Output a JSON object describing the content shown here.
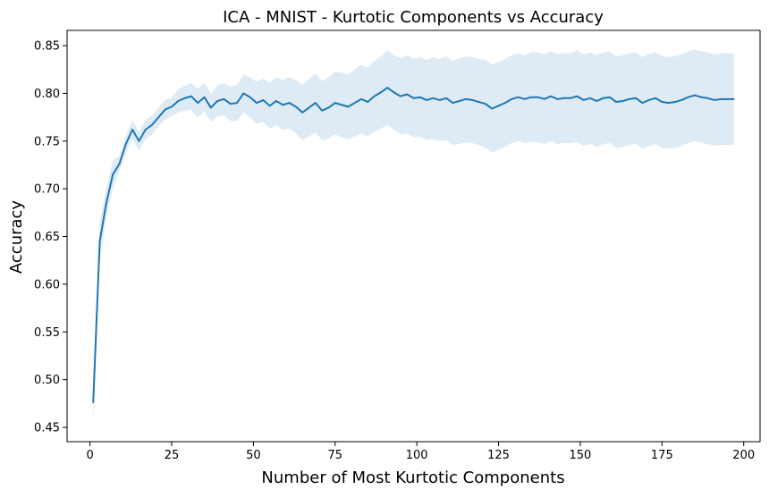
{
  "chart_data": {
    "type": "line",
    "title": "ICA - MNIST - Kurtotic Components vs Accuracy",
    "xlabel": "Number of Most Kurtotic Components",
    "ylabel": "Accuracy",
    "xlim": [
      -7,
      205
    ],
    "ylim": [
      0.435,
      0.866
    ],
    "xticks": [
      0,
      25,
      50,
      75,
      100,
      125,
      150,
      175,
      200
    ],
    "xtick_labels": [
      "0",
      "25",
      "50",
      "75",
      "100",
      "125",
      "150",
      "175",
      "200"
    ],
    "yticks": [
      0.45,
      0.5,
      0.55,
      0.6,
      0.65,
      0.7,
      0.75,
      0.8,
      0.85
    ],
    "ytick_labels": [
      "0.45",
      "0.50",
      "0.55",
      "0.60",
      "0.65",
      "0.70",
      "0.75",
      "0.80",
      "0.85"
    ],
    "grid": false,
    "legend": "none",
    "colors": {
      "line": "#1f77b4",
      "band": "#1f77b4"
    },
    "series": [
      {
        "x": [
          1,
          3,
          5,
          7,
          9,
          11,
          13,
          15,
          17,
          19,
          21,
          23,
          25,
          27,
          29,
          31,
          33,
          35,
          37,
          39,
          41,
          43,
          45,
          47,
          49,
          51,
          53,
          55,
          57,
          59,
          61,
          63,
          65,
          67,
          69,
          71,
          73,
          75,
          77,
          79,
          81,
          83,
          85,
          87,
          89,
          91,
          93,
          95,
          97,
          99,
          101,
          103,
          105,
          107,
          109,
          111,
          113,
          115,
          117,
          119,
          121,
          123,
          125,
          127,
          129,
          131,
          133,
          135,
          137,
          139,
          141,
          143,
          145,
          147,
          149,
          151,
          153,
          155,
          157,
          159,
          161,
          163,
          165,
          167,
          169,
          171,
          173,
          175,
          177,
          179,
          181,
          183,
          185,
          187,
          189,
          191,
          193,
          195,
          197
        ],
        "values": [
          0.476,
          0.645,
          0.685,
          0.715,
          0.726,
          0.747,
          0.762,
          0.75,
          0.762,
          0.767,
          0.775,
          0.783,
          0.786,
          0.792,
          0.795,
          0.797,
          0.79,
          0.796,
          0.785,
          0.792,
          0.794,
          0.789,
          0.79,
          0.8,
          0.796,
          0.79,
          0.793,
          0.787,
          0.792,
          0.788,
          0.79,
          0.786,
          0.78,
          0.785,
          0.79,
          0.782,
          0.785,
          0.79,
          0.788,
          0.786,
          0.79,
          0.794,
          0.791,
          0.797,
          0.801,
          0.806,
          0.801,
          0.797,
          0.799,
          0.795,
          0.796,
          0.793,
          0.795,
          0.793,
          0.795,
          0.79,
          0.792,
          0.794,
          0.793,
          0.791,
          0.789,
          0.784,
          0.787,
          0.79,
          0.794,
          0.796,
          0.794,
          0.796,
          0.796,
          0.794,
          0.797,
          0.794,
          0.795,
          0.795,
          0.797,
          0.793,
          0.795,
          0.792,
          0.795,
          0.796,
          0.791,
          0.792,
          0.794,
          0.795,
          0.79,
          0.793,
          0.795,
          0.791,
          0.79,
          0.791,
          0.793,
          0.796,
          0.798,
          0.796,
          0.795,
          0.793,
          0.794,
          0.794,
          0.794
        ],
        "lower": [
          0.453,
          0.625,
          0.67,
          0.7,
          0.718,
          0.738,
          0.752,
          0.74,
          0.752,
          0.757,
          0.765,
          0.773,
          0.776,
          0.78,
          0.782,
          0.783,
          0.775,
          0.781,
          0.77,
          0.776,
          0.777,
          0.771,
          0.771,
          0.78,
          0.775,
          0.768,
          0.77,
          0.763,
          0.767,
          0.762,
          0.763,
          0.758,
          0.751,
          0.755,
          0.759,
          0.751,
          0.753,
          0.757,
          0.754,
          0.752,
          0.755,
          0.758,
          0.755,
          0.76,
          0.763,
          0.767,
          0.762,
          0.757,
          0.758,
          0.754,
          0.754,
          0.751,
          0.752,
          0.75,
          0.751,
          0.746,
          0.747,
          0.749,
          0.748,
          0.746,
          0.743,
          0.738,
          0.741,
          0.744,
          0.748,
          0.75,
          0.748,
          0.749,
          0.749,
          0.747,
          0.75,
          0.747,
          0.748,
          0.748,
          0.749,
          0.745,
          0.747,
          0.744,
          0.747,
          0.748,
          0.743,
          0.744,
          0.746,
          0.747,
          0.742,
          0.745,
          0.747,
          0.743,
          0.742,
          0.743,
          0.745,
          0.748,
          0.75,
          0.748,
          0.747,
          0.745,
          0.746,
          0.746,
          0.746
        ],
        "upper": [
          0.5,
          0.665,
          0.7,
          0.73,
          0.734,
          0.756,
          0.772,
          0.76,
          0.772,
          0.777,
          0.785,
          0.793,
          0.796,
          0.804,
          0.808,
          0.811,
          0.805,
          0.811,
          0.8,
          0.808,
          0.811,
          0.807,
          0.809,
          0.82,
          0.817,
          0.812,
          0.816,
          0.811,
          0.817,
          0.814,
          0.817,
          0.814,
          0.809,
          0.815,
          0.821,
          0.813,
          0.817,
          0.823,
          0.822,
          0.82,
          0.825,
          0.83,
          0.827,
          0.834,
          0.839,
          0.845,
          0.84,
          0.837,
          0.84,
          0.836,
          0.838,
          0.835,
          0.838,
          0.836,
          0.839,
          0.834,
          0.837,
          0.839,
          0.838,
          0.836,
          0.835,
          0.83,
          0.833,
          0.836,
          0.84,
          0.842,
          0.84,
          0.843,
          0.843,
          0.841,
          0.844,
          0.841,
          0.842,
          0.842,
          0.845,
          0.841,
          0.843,
          0.84,
          0.843,
          0.844,
          0.839,
          0.84,
          0.842,
          0.843,
          0.838,
          0.841,
          0.843,
          0.839,
          0.838,
          0.839,
          0.841,
          0.844,
          0.846,
          0.844,
          0.843,
          0.841,
          0.842,
          0.842,
          0.842
        ]
      }
    ]
  }
}
